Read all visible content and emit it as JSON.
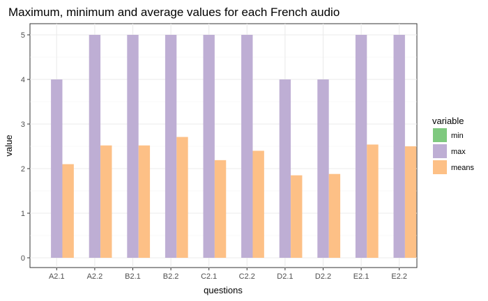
{
  "chart_data": {
    "type": "bar",
    "title": "Maximum, minimum and average values for each French audio",
    "xlabel": "questions",
    "ylabel": "value",
    "categories": [
      "A2.1",
      "A2.2",
      "B2.1",
      "B2.2",
      "C2.1",
      "C2.2",
      "D2.1",
      "D2.2",
      "E2.1",
      "E2.2"
    ],
    "series": [
      {
        "name": "min",
        "color": "#7fc97f",
        "values": [
          0,
          0,
          0,
          0,
          0,
          0,
          0,
          0,
          0,
          0
        ]
      },
      {
        "name": "max",
        "color": "#beaed4",
        "values": [
          4,
          5,
          5,
          5,
          5,
          5,
          4,
          4,
          5,
          5
        ]
      },
      {
        "name": "means",
        "color": "#fdc086",
        "values": [
          2.1,
          2.52,
          2.52,
          2.71,
          2.19,
          2.4,
          1.85,
          1.88,
          2.54,
          2.5
        ]
      }
    ],
    "ylim": [
      0,
      5.25
    ],
    "yticks": [
      "0",
      "1",
      "2",
      "3",
      "4",
      "5"
    ],
    "grid": true,
    "legend": {
      "title": "variable",
      "position": "right"
    }
  }
}
